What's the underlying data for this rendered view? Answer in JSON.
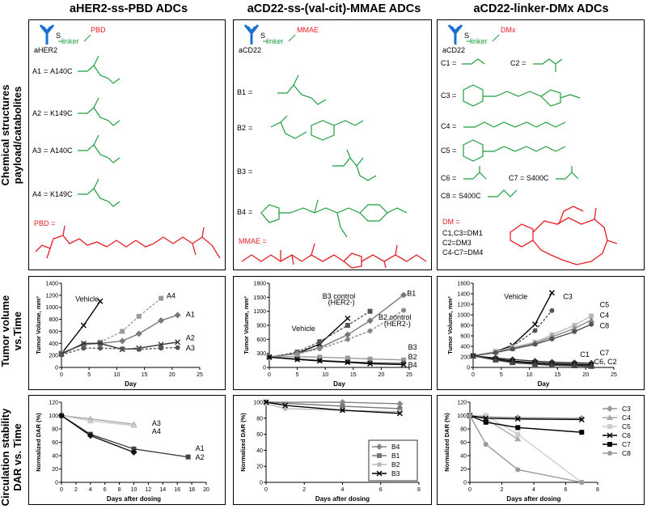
{
  "columns": [
    {
      "title": "aHER2-ss-PBD ADCs"
    },
    {
      "title": "aCD22-ss-(val-cit)-MMAE ADCs"
    },
    {
      "title": "aCD22-linker-DMx ADCs"
    }
  ],
  "rows": [
    {
      "label_lines": [
        "Chemical structures",
        "payload/catabolites"
      ]
    },
    {
      "label_lines": [
        "Tumor volume",
        "vs.Time"
      ]
    },
    {
      "label_lines": [
        "Circulation stability",
        "DAR vs. Time"
      ]
    }
  ],
  "structures": {
    "p1": {
      "antibody": "aHER2",
      "linker": "linker",
      "payload": "PBD",
      "items": [
        {
          "name": "A1",
          "site": "A140C"
        },
        {
          "name": "A2",
          "site": "K149C"
        },
        {
          "name": "A3",
          "site": "A140C"
        },
        {
          "name": "A4",
          "site": "K149C"
        }
      ],
      "payload_label": "PBD ="
    },
    "p2": {
      "antibody": "aCD22",
      "linker": "linker",
      "payload": "MMAE",
      "items": [
        {
          "name": "B1"
        },
        {
          "name": "B2"
        },
        {
          "name": "B3"
        },
        {
          "name": "B4"
        }
      ],
      "payload_label": "MMAE ="
    },
    "p3": {
      "antibody": "aCD22",
      "linker": "linker",
      "payload": "DMx",
      "items": [
        {
          "name": "C1"
        },
        {
          "name": "C2"
        },
        {
          "name": "C3"
        },
        {
          "name": "C4"
        },
        {
          "name": "C5"
        },
        {
          "name": "C6"
        },
        {
          "name": "C7",
          "site": "S400C"
        },
        {
          "name": "C8",
          "site": "S400C"
        }
      ],
      "dm_title": "DM =",
      "dm_lines": [
        "C1,C3=DM1",
        "C2=DM3",
        "C4-C7=DM4"
      ]
    }
  },
  "chart_data": [
    {
      "id": "t1",
      "type": "line",
      "title": "",
      "xlabel": "Day",
      "ylabel": "Tumor Volume, mm³",
      "xlim": [
        0,
        25
      ],
      "ylim": [
        0,
        1400
      ],
      "xticks": [
        0,
        5,
        10,
        15,
        20,
        25
      ],
      "yticks": [
        0,
        200,
        400,
        600,
        800,
        1000,
        1200,
        1400
      ],
      "series": [
        {
          "name": "Vehicle",
          "color": "#000000",
          "dash": false,
          "marker": "x",
          "x": [
            0,
            4,
            7
          ],
          "y": [
            230,
            700,
            1100
          ]
        },
        {
          "name": "A4",
          "color": "#999999",
          "dash": true,
          "marker": "s",
          "x": [
            0,
            4,
            7,
            11,
            14,
            18
          ],
          "y": [
            240,
            380,
            420,
            600,
            850,
            1150
          ]
        },
        {
          "name": "A1",
          "color": "#777777",
          "dash": false,
          "marker": "d",
          "x": [
            0,
            4,
            7,
            11,
            14,
            18,
            21
          ],
          "y": [
            240,
            380,
            400,
            440,
            560,
            780,
            870
          ]
        },
        {
          "name": "A2",
          "color": "#333333",
          "dash": false,
          "marker": "x",
          "x": [
            0,
            4,
            7,
            11,
            14,
            18,
            21
          ],
          "y": [
            220,
            400,
            400,
            300,
            320,
            380,
            420
          ]
        },
        {
          "name": "A3",
          "color": "#555555",
          "dash": true,
          "marker": "o",
          "x": [
            0,
            4,
            7,
            11,
            14,
            18,
            21
          ],
          "y": [
            210,
            320,
            320,
            310,
            300,
            320,
            330
          ]
        }
      ],
      "labels": [
        {
          "text": "Vehicle",
          "x": 2.5,
          "y": 1100
        },
        {
          "text": "A4",
          "x": 19,
          "y": 1150
        },
        {
          "text": "A1",
          "x": 22.5,
          "y": 840
        },
        {
          "text": "A2",
          "x": 22.5,
          "y": 450
        },
        {
          "text": "A3",
          "x": 22.5,
          "y": 280
        }
      ]
    },
    {
      "id": "t2",
      "type": "line",
      "title": "",
      "xlabel": "Day",
      "ylabel": "Tumor Volume, mm³",
      "xlim": [
        0,
        25
      ],
      "ylim": [
        0,
        1800
      ],
      "xticks": [
        0,
        5,
        10,
        15,
        20,
        25
      ],
      "yticks": [
        0,
        300,
        600,
        900,
        1200,
        1500,
        1800
      ],
      "series": [
        {
          "name": "Vehicle",
          "color": "#000000",
          "dash": false,
          "marker": "x",
          "x": [
            0,
            5,
            9,
            14
          ],
          "y": [
            220,
            300,
            500,
            1050
          ]
        },
        {
          "name": "B3 control (HER2-)",
          "color": "#555555",
          "dash": true,
          "marker": "s",
          "x": [
            0,
            5,
            9,
            14,
            18
          ],
          "y": [
            220,
            330,
            550,
            900,
            1200
          ]
        },
        {
          "name": "B1",
          "color": "#777777",
          "dash": false,
          "marker": "d",
          "x": [
            0,
            5,
            9,
            14,
            18,
            24
          ],
          "y": [
            220,
            300,
            420,
            700,
            1000,
            1550
          ]
        },
        {
          "name": "B2 control (HER2-)",
          "color": "#888888",
          "dash": true,
          "marker": "o",
          "x": [
            0,
            5,
            9,
            14,
            18,
            24
          ],
          "y": [
            220,
            290,
            400,
            600,
            780,
            1220
          ]
        },
        {
          "name": "B3",
          "color": "#999999",
          "dash": false,
          "marker": "s",
          "x": [
            0,
            5,
            9,
            14,
            18,
            24
          ],
          "y": [
            220,
            230,
            220,
            200,
            180,
            160
          ]
        },
        {
          "name": "B2",
          "color": "#555555",
          "dash": false,
          "marker": "o",
          "x": [
            0,
            5,
            9,
            14,
            18,
            24
          ],
          "y": [
            220,
            180,
            150,
            120,
            100,
            90
          ]
        },
        {
          "name": "B4",
          "color": "#000000",
          "dash": false,
          "marker": "x",
          "x": [
            0,
            5,
            9,
            14,
            18,
            24
          ],
          "y": [
            220,
            170,
            140,
            110,
            80,
            60
          ]
        }
      ],
      "labels": [
        {
          "text": "Vehicle",
          "x": 4,
          "y": 780
        },
        {
          "text": "B3 control",
          "x": 9.5,
          "y": 1470
        },
        {
          "text": "(HER2-)",
          "x": 10.5,
          "y": 1340
        },
        {
          "text": "B1",
          "x": 24.6,
          "y": 1530
        },
        {
          "text": "B2 control",
          "x": 19.5,
          "y": 1020
        },
        {
          "text": "(HER2-)",
          "x": 20.5,
          "y": 880
        },
        {
          "text": "B3",
          "x": 24.8,
          "y": 380
        },
        {
          "text": "B2",
          "x": 24.8,
          "y": 170
        },
        {
          "text": "B4",
          "x": 24.8,
          "y": 0
        }
      ]
    },
    {
      "id": "t3",
      "type": "line",
      "title": "",
      "xlabel": "Day",
      "ylabel": "Tumor Volume, mm³",
      "xlim": [
        0,
        25
      ],
      "ylim": [
        0,
        1600
      ],
      "xticks": [
        0,
        5,
        10,
        15,
        20,
        25
      ],
      "yticks": [
        0,
        200,
        400,
        600,
        800,
        1000,
        1200,
        1400,
        1600
      ],
      "series": [
        {
          "name": "Vehicle",
          "color": "#000000",
          "dash": false,
          "marker": "x",
          "x": [
            0,
            4,
            7,
            11,
            14
          ],
          "y": [
            220,
            300,
            420,
            820,
            1420
          ]
        },
        {
          "name": "C3",
          "color": "#555555",
          "dash": true,
          "marker": "o",
          "x": [
            0,
            4,
            7,
            11,
            14
          ],
          "y": [
            220,
            290,
            400,
            700,
            1080
          ]
        },
        {
          "name": "C5",
          "color": "#bbbbbb",
          "dash": false,
          "marker": "s",
          "x": [
            0,
            4,
            7,
            11,
            14,
            18,
            21
          ],
          "y": [
            220,
            300,
            380,
            480,
            620,
            800,
            980
          ]
        },
        {
          "name": "C4",
          "color": "#888888",
          "dash": false,
          "marker": "t",
          "x": [
            0,
            4,
            7,
            11,
            14,
            18,
            21
          ],
          "y": [
            220,
            290,
            360,
            460,
            580,
            740,
            900
          ]
        },
        {
          "name": "C8",
          "color": "#555555",
          "dash": false,
          "marker": "o",
          "x": [
            0,
            4,
            7,
            11,
            14,
            18,
            21
          ],
          "y": [
            220,
            280,
            350,
            440,
            540,
            680,
            820
          ]
        },
        {
          "name": "C1",
          "color": "#333333",
          "dash": false,
          "marker": "d",
          "x": [
            0,
            4,
            7,
            11,
            14,
            18,
            21
          ],
          "y": [
            220,
            180,
            150,
            120,
            100,
            90,
            80
          ]
        },
        {
          "name": "C7",
          "color": "#000000",
          "dash": false,
          "marker": "x",
          "x": [
            0,
            4,
            7,
            11,
            14,
            18,
            21
          ],
          "y": [
            220,
            160,
            120,
            90,
            70,
            60,
            50
          ]
        },
        {
          "name": "C6",
          "color": "#222222",
          "dash": false,
          "marker": "s",
          "x": [
            0,
            4,
            7,
            11,
            14,
            18,
            21
          ],
          "y": [
            220,
            150,
            100,
            70,
            50,
            40,
            30
          ]
        },
        {
          "name": "C2",
          "color": "#444444",
          "dash": false,
          "marker": "t",
          "x": [
            0,
            4,
            7,
            11,
            14,
            18,
            21
          ],
          "y": [
            220,
            140,
            90,
            60,
            40,
            30,
            20
          ]
        }
      ],
      "labels": [
        {
          "text": "Vehicle",
          "x": 5.5,
          "y": 1300
        },
        {
          "text": "C3",
          "x": 16,
          "y": 1300
        },
        {
          "text": "C5",
          "x": 22.5,
          "y": 1150
        },
        {
          "text": "C4",
          "x": 22.5,
          "y": 950
        },
        {
          "text": "C8",
          "x": 22.5,
          "y": 750
        },
        {
          "text": "C1",
          "x": 19,
          "y": 200
        },
        {
          "text": "C7",
          "x": 22.5,
          "y": 230
        },
        {
          "text": "C6, C2",
          "x": 21.5,
          "y": 60
        }
      ]
    },
    {
      "id": "d1",
      "type": "line",
      "title": "",
      "xlabel": "Days after dosing",
      "ylabel": "Normalized DAR (%)",
      "xlim": [
        0,
        20
      ],
      "ylim": [
        0,
        120
      ],
      "xticks": [
        0,
        2,
        4,
        6,
        8,
        10,
        12,
        14,
        16,
        18,
        20
      ],
      "yticks": [
        0,
        20,
        40,
        60,
        80,
        100,
        120
      ],
      "series": [
        {
          "name": "A3",
          "color": "#aaaaaa",
          "dash": false,
          "marker": "t",
          "x": [
            0,
            4,
            10
          ],
          "y": [
            100,
            95,
            87
          ]
        },
        {
          "name": "A4",
          "color": "#cccccc",
          "dash": false,
          "marker": "t",
          "x": [
            0,
            4,
            10
          ],
          "y": [
            100,
            92,
            85
          ]
        },
        {
          "name": "A1",
          "color": "#444444",
          "dash": false,
          "marker": "s",
          "x": [
            0,
            4,
            10,
            17.5
          ],
          "y": [
            100,
            72,
            50,
            38
          ]
        },
        {
          "name": "A2",
          "color": "#111111",
          "dash": false,
          "marker": "d",
          "x": [
            0,
            4,
            10
          ],
          "y": [
            100,
            70,
            45
          ]
        }
      ],
      "labels": [
        {
          "text": "A3",
          "x": 12.5,
          "y": 85
        },
        {
          "text": "A4",
          "x": 12.5,
          "y": 73
        },
        {
          "text": "A1",
          "x": 18.5,
          "y": 47
        },
        {
          "text": "A2",
          "x": 18.5,
          "y": 34
        }
      ]
    },
    {
      "id": "d2",
      "type": "line",
      "title": "",
      "xlabel": "Days after dosing",
      "ylabel": "Normalized DAR (%)",
      "xlim": [
        0,
        8
      ],
      "ylim": [
        0,
        100
      ],
      "xticks": [
        0,
        2,
        4,
        6,
        8
      ],
      "yticks": [
        0,
        20,
        40,
        60,
        80,
        100
      ],
      "series": [
        {
          "name": "B4",
          "color": "#888888",
          "dash": false,
          "marker": "d",
          "x": [
            0,
            4,
            7
          ],
          "y": [
            100,
            100,
            98
          ]
        },
        {
          "name": "B1",
          "color": "#777777",
          "dash": false,
          "marker": "s",
          "x": [
            0,
            4,
            7
          ],
          "y": [
            100,
            95,
            92
          ]
        },
        {
          "name": "B2",
          "color": "#bbbbbb",
          "dash": false,
          "marker": "o",
          "x": [
            0,
            1,
            4,
            7
          ],
          "y": [
            98,
            92,
            90,
            88
          ]
        },
        {
          "name": "B3",
          "color": "#000000",
          "dash": false,
          "marker": "x",
          "x": [
            0,
            1,
            4,
            7
          ],
          "y": [
            100,
            96,
            90,
            86
          ]
        }
      ],
      "legend": "bottom-right"
    },
    {
      "id": "d3",
      "type": "line",
      "title": "",
      "xlabel": "Days after dosing",
      "ylabel": "Normalized DAR (%)",
      "xlim": [
        0,
        8
      ],
      "ylim": [
        0,
        120
      ],
      "xticks": [
        0,
        2,
        4,
        6,
        8
      ],
      "yticks": [
        0,
        20,
        40,
        60,
        80,
        100,
        120
      ],
      "series": [
        {
          "name": "C3",
          "color": "#999999",
          "dash": false,
          "marker": "d",
          "x": [
            0,
            1,
            3,
            7
          ],
          "y": [
            100,
            98,
            97,
            96
          ]
        },
        {
          "name": "C4",
          "color": "#aaaaaa",
          "dash": false,
          "marker": "t",
          "x": [
            0,
            1,
            3
          ],
          "y": [
            100,
            95,
            65
          ]
        },
        {
          "name": "C5",
          "color": "#cccccc",
          "dash": false,
          "marker": "s",
          "x": [
            0,
            1,
            3,
            7
          ],
          "y": [
            100,
            100,
            72,
            0
          ]
        },
        {
          "name": "C6",
          "color": "#000000",
          "dash": false,
          "marker": "x",
          "x": [
            0,
            1,
            3,
            7
          ],
          "y": [
            100,
            96,
            95,
            94
          ]
        },
        {
          "name": "C7",
          "color": "#000000",
          "dash": false,
          "marker": "p",
          "x": [
            0,
            1,
            3,
            7
          ],
          "y": [
            100,
            90,
            82,
            75
          ]
        },
        {
          "name": "C8",
          "color": "#999999",
          "dash": false,
          "marker": "o",
          "x": [
            0,
            1,
            3,
            7
          ],
          "y": [
            100,
            57,
            19,
            0
          ]
        }
      ],
      "legend": "right"
    }
  ]
}
